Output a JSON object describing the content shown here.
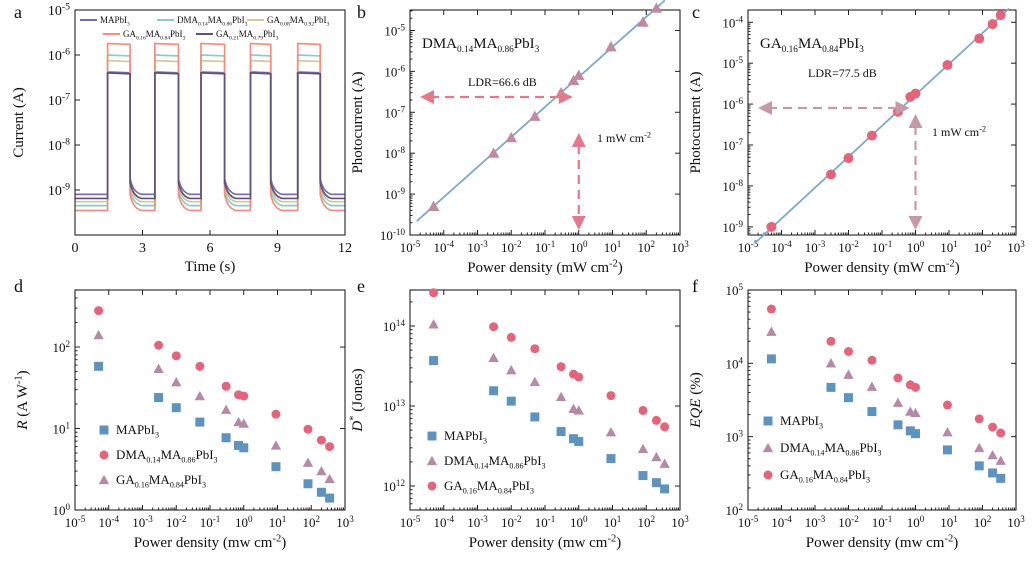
{
  "chart_data": [
    {
      "panel": "a",
      "type": "line",
      "title": "",
      "xlabel": "Time (s)",
      "ylabel": "Current (A)",
      "xlim": [
        0,
        12
      ],
      "ylim_log10": [
        -10,
        -5
      ],
      "xticks": [
        "0",
        "3",
        "6",
        "9",
        "12"
      ],
      "yticks": [
        {
          "b": "10",
          "e": "-9",
          "v": -9
        },
        {
          "b": "10",
          "e": "-8",
          "v": -8
        },
        {
          "b": "10",
          "e": "-7",
          "v": -7
        },
        {
          "b": "10",
          "e": "-6",
          "v": -6
        },
        {
          "b": "10",
          "e": "-5",
          "v": -5
        }
      ],
      "on_intervals": [
        [
          1.45,
          2.45
        ],
        [
          3.55,
          4.6
        ],
        [
          5.6,
          6.65
        ],
        [
          7.8,
          8.7
        ],
        [
          9.9,
          10.9
        ]
      ],
      "series": [
        {
          "name": "MAPbI3",
          "label": {
            "base": "MAPbI",
            "sub": "3"
          },
          "color": "#7b6ba8",
          "on": 4.2e-07,
          "off": 8e-10
        },
        {
          "name": "DMA0.14MA0.86PbI3",
          "label": {
            "parts": [
              [
                "DMA",
                ""
              ],
              [
                "0.14",
                "sub"
              ],
              [
                "MA",
                ""
              ],
              [
                "0.86",
                "sub"
              ],
              [
                "PbI",
                ""
              ],
              [
                "3",
                "sub"
              ]
            ]
          },
          "color": "#8ecbc4",
          "on": 1e-06,
          "off": 4.5e-10
        },
        {
          "name": "GA0.08MA0.92PbI3",
          "label": {
            "parts": [
              [
                "GA",
                ""
              ],
              [
                "0.08",
                "sub"
              ],
              [
                "MA",
                ""
              ],
              [
                "0.92",
                "sub"
              ],
              [
                "PbI",
                ""
              ],
              [
                "3",
                "sub"
              ]
            ]
          },
          "color": "#d2c5a0",
          "on": 7.5e-07,
          "off": 5.5e-10
        },
        {
          "name": "GA0.16MA0.84PbI3",
          "label": {
            "parts": [
              [
                "GA",
                ""
              ],
              [
                "0.16",
                "sub"
              ],
              [
                "MA",
                ""
              ],
              [
                "0.84",
                "sub"
              ],
              [
                "PbI",
                ""
              ],
              [
                "3",
                "sub"
              ]
            ]
          },
          "color": "#ef8f80",
          "on": 1.8e-06,
          "off": 3.5e-10
        },
        {
          "name": "GA0.21MA0.79PbI3",
          "label": {
            "parts": [
              [
                "GA",
                ""
              ],
              [
                "0.21",
                "sub"
              ],
              [
                "MA",
                ""
              ],
              [
                "0.79",
                "sub"
              ],
              [
                "PbI",
                ""
              ],
              [
                "3",
                "sub"
              ]
            ]
          },
          "color": "#5b5478",
          "on": 4e-07,
          "off": 6.5e-10
        }
      ]
    },
    {
      "panel": "b",
      "type": "scatter",
      "title": "DMA0.14MA0.86PbI3",
      "xlabel": "Power density (mW cm-2)",
      "ylabel": "Photocurrent (A)",
      "xlim_log10": [
        -5,
        3
      ],
      "ylim_log10": [
        -10,
        -4.5
      ],
      "annotations": [
        "LDR=66.6 dB",
        "1 mW cm-2"
      ],
      "marker": "triangle",
      "marker_color": "#c08aa0",
      "line_color": "#7fa9c9",
      "x": [
        5e-05,
        0.003,
        0.01,
        0.05,
        0.3,
        0.7,
        1,
        9,
        80,
        200
      ],
      "y": [
        5e-10,
        1e-08,
        2.4e-08,
        8e-08,
        3e-07,
        6e-07,
        8e-07,
        4e-06,
        1.6e-05,
        3.5e-05
      ]
    },
    {
      "panel": "c",
      "type": "scatter",
      "title": "GA0.16MA0.84PbI3",
      "xlabel": "Power density (mW cm-2)",
      "ylabel": "Photocurrent (A)",
      "xlim_log10": [
        -5,
        3
      ],
      "ylim_log10": [
        -9.2,
        -3.7
      ],
      "annotations": [
        "LDR=77.5 dB",
        "1 mW cm-2"
      ],
      "marker": "circle",
      "marker_color": "#e3657c",
      "line_color": "#7fa9c9",
      "x": [
        5e-05,
        0.003,
        0.01,
        0.05,
        0.3,
        0.7,
        1,
        9,
        80,
        200,
        350
      ],
      "y": [
        1e-09,
        1.9e-08,
        4.8e-08,
        1.7e-07,
        6.5e-07,
        1.5e-06,
        1.8e-06,
        9e-06,
        4e-05,
        9e-05,
        0.00015
      ]
    },
    {
      "panel": "d",
      "type": "scatter",
      "xlabel": "Power density (mw cm-2)",
      "ylabel": "R (A W-1)",
      "xlim_log10": [
        -5,
        3
      ],
      "ylim_log10": [
        0,
        2.7
      ],
      "x": [
        5e-05,
        0.003,
        0.01,
        0.05,
        0.3,
        0.7,
        1,
        9,
        80,
        200,
        350
      ],
      "series": [
        {
          "name": "MAPbI3",
          "marker": "square",
          "color": "#5f93bd",
          "values": [
            58,
            24,
            18,
            12,
            7.7,
            6.2,
            5.8,
            3.4,
            2.1,
            1.65,
            1.4
          ]
        },
        {
          "name": "DMA0.14MA0.86PbI3",
          "marker": "circle",
          "color": "#e3657c",
          "values": [
            280,
            105,
            78,
            58,
            33,
            26,
            25,
            15,
            9.8,
            7.2,
            6
          ]
        },
        {
          "name": "GA0.16MA0.84PbI3",
          "marker": "triangle",
          "color": "#b48aa6",
          "values": [
            140,
            54,
            37,
            25,
            17,
            12,
            11.5,
            6.2,
            3.8,
            3,
            2.4
          ]
        }
      ]
    },
    {
      "panel": "e",
      "type": "scatter",
      "xlabel": "Power density (mw cm-2)",
      "ylabel": "D* (Jones)",
      "xlim_log10": [
        -5,
        3
      ],
      "ylim_log10": [
        11.7,
        14.45
      ],
      "x": [
        5e-05,
        0.003,
        0.01,
        0.05,
        0.3,
        0.7,
        1,
        9,
        80,
        200,
        350
      ],
      "series": [
        {
          "name": "MAPbI3",
          "marker": "square",
          "color": "#5f93bd",
          "values": [
            37000000000000.0,
            15500000000000.0,
            11500000000000.0,
            7300000000000.0,
            4800000000000.0,
            3900000000000.0,
            3600000000000.0,
            2200000000000.0,
            1350000000000.0,
            1100000000000.0,
            920000000000.0
          ]
        },
        {
          "name": "DMA0.14MA0.86PbI3",
          "marker": "triangle",
          "color": "#b48aa6",
          "values": [
            105000000000000.0,
            40000000000000.0,
            28000000000000.0,
            20000000000000.0,
            13000000000000.0,
            9200000000000.0,
            8800000000000.0,
            4700000000000.0,
            2900000000000.0,
            2300000000000.0,
            1900000000000.0
          ]
        },
        {
          "name": "GA0.16MA0.84PbI3",
          "marker": "circle",
          "color": "#e3657c",
          "values": [
            260000000000000.0,
            98000000000000.0,
            72000000000000.0,
            52000000000000.0,
            31000000000000.0,
            25000000000000.0,
            23000000000000.0,
            13500000000000.0,
            8800000000000.0,
            6600000000000.0,
            5500000000000.0
          ]
        }
      ]
    },
    {
      "panel": "f",
      "type": "scatter",
      "xlabel": "Power density (mw cm-2)",
      "ylabel": "EQE (%)",
      "xlim_log10": [
        -5,
        3
      ],
      "ylim_log10": [
        2,
        5
      ],
      "x": [
        5e-05,
        0.003,
        0.01,
        0.05,
        0.3,
        0.7,
        1,
        9,
        80,
        200,
        350
      ],
      "series": [
        {
          "name": "MAPbI3",
          "marker": "square",
          "color": "#5f93bd",
          "values": [
            11500,
            4700,
            3400,
            2200,
            1450,
            1200,
            1100,
            660,
            400,
            320,
            270
          ]
        },
        {
          "name": "DMA0.14MA0.86PbI3",
          "marker": "triangle",
          "color": "#b48aa6",
          "values": [
            27000,
            10000,
            7000,
            4800,
            2900,
            2200,
            2100,
            1150,
            700,
            560,
            470
          ]
        },
        {
          "name": "GA0.16MA0.84PbI3",
          "marker": "circle",
          "color": "#e3657c",
          "values": [
            55000,
            20000,
            14500,
            11000,
            6300,
            5100,
            4700,
            2700,
            1750,
            1350,
            1120
          ]
        }
      ]
    }
  ],
  "panel_letters": [
    "a",
    "b",
    "c",
    "d",
    "e",
    "f"
  ],
  "log_xticks": [
    {
      "b": "10",
      "e": "-5"
    },
    {
      "b": "10",
      "e": "-4"
    },
    {
      "b": "10",
      "e": "-3"
    },
    {
      "b": "10",
      "e": "-2"
    },
    {
      "b": "10",
      "e": "-1"
    },
    {
      "b": "10",
      "e": "0"
    },
    {
      "b": "10",
      "e": "1"
    },
    {
      "b": "10",
      "e": "2"
    },
    {
      "b": "10",
      "e": "3"
    }
  ],
  "text": {
    "xlabel_mW": "Power density (mW cm",
    "xlabel_mw": "Power density (mw cm",
    "unit_sup": "-2",
    "unit_close": ")",
    "photocurrent": "Photocurrent (A)",
    "ldr_b": "LDR=66.6 dB",
    "ldr_c": "LDR=77.5 dB",
    "mw_annot": "1 mW cm",
    "r_sym": "R",
    "r_unit": " (A W",
    "r_sup": "-1",
    "d_sym": "D",
    "d_star": "*",
    "d_unit": " (Jones)",
    "eqe_sym": "EQE",
    "eqe_unit": " (%)"
  }
}
